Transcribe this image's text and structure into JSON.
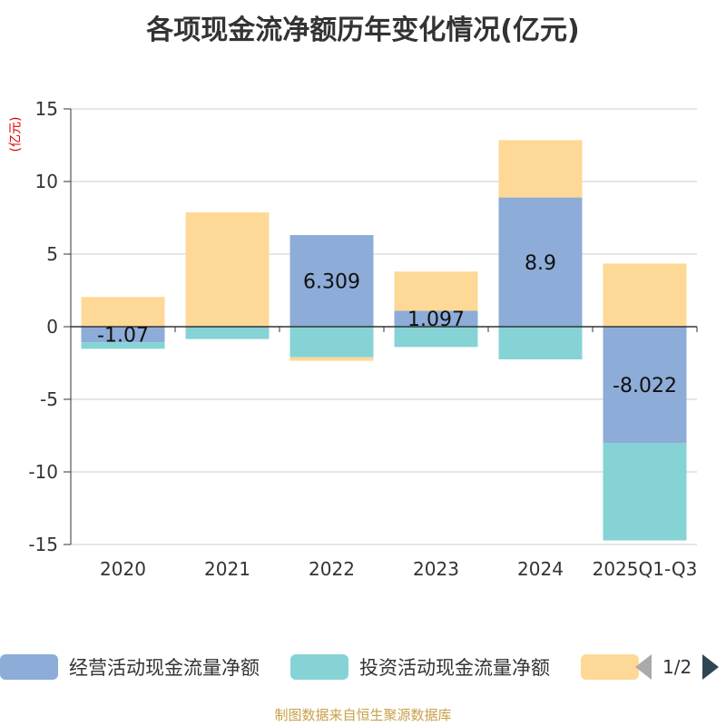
{
  "chart_data": {
    "type": "bar",
    "stacked": true,
    "title": "各项现金流净额历年变化情况(亿元)",
    "ylabel": "(亿元)",
    "ylim": [
      -15,
      15
    ],
    "yticks": [
      15,
      10,
      5,
      0,
      -5,
      -10,
      -15
    ],
    "categories": [
      "2020",
      "2021",
      "2022",
      "2023",
      "2024",
      "2025Q1-Q3"
    ],
    "series": [
      {
        "name": "经营活动现金流量净额",
        "color": "#8dacd8",
        "values": [
          -1.07,
          0.02,
          6.309,
          1.097,
          8.9,
          -8.022
        ],
        "labels": [
          "-1.07",
          "",
          "6.309",
          "1.097",
          "8.9",
          "-8.022"
        ]
      },
      {
        "name": "投资活动现金流量净额",
        "color": "#86d3d6",
        "values": [
          -0.45,
          -0.85,
          -2.1,
          -1.4,
          -2.25,
          -6.7
        ]
      },
      {
        "name": "",
        "color": "#fed896",
        "values": [
          2.05,
          7.85,
          -0.25,
          2.7,
          3.95,
          4.35
        ]
      }
    ]
  },
  "legend": {
    "items": [
      {
        "label": "经营活动现金流量净额",
        "color": "#8dacd8"
      },
      {
        "label": "投资活动现金流量净额",
        "color": "#86d3d6"
      },
      {
        "label": "",
        "color": "#fed896"
      }
    ],
    "pager_text": "1/2"
  },
  "source_text": "制图数据来自恒生聚源数据库"
}
